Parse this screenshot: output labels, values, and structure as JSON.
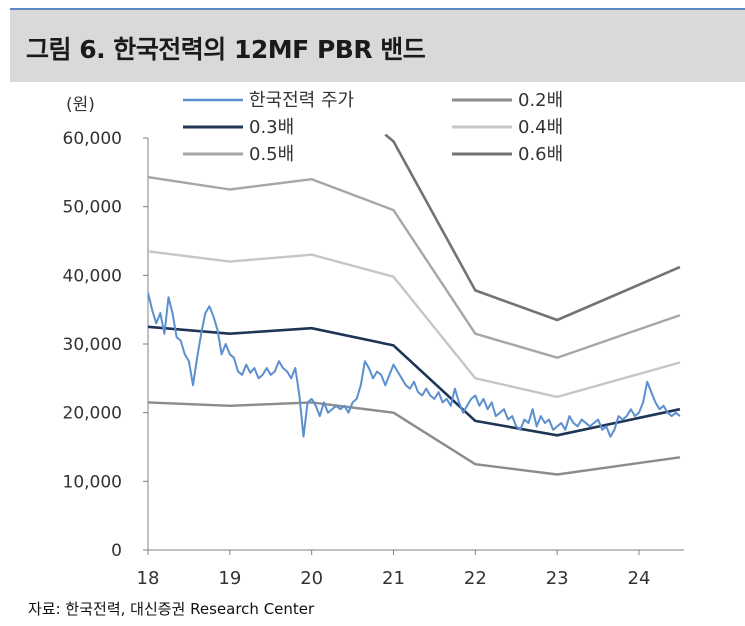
{
  "header": {
    "title": "그림 6.  한국전력의 12MF PBR 밴드"
  },
  "source": "자료: 한국전력, 대신증권 Research Center",
  "colors": {
    "header_bg": "#d9d9d9",
    "header_accent": "#5b89c3",
    "price": "#5b8fd0",
    "pbr_0_2": "#8c8c8c",
    "pbr_0_3": "#1f3556",
    "pbr_0_4": "#c6c6c6",
    "pbr_0_5": "#a6a6a6",
    "pbr_0_6": "#737373"
  },
  "chart_data": {
    "type": "line",
    "unit_label": "(원)",
    "xlabel": "",
    "ylabel": "",
    "xlim": [
      18,
      24.55
    ],
    "ylim": [
      0,
      60000
    ],
    "x_ticks": [
      18,
      19,
      20,
      21,
      22,
      23,
      24
    ],
    "x_tick_labels": [
      "18",
      "19",
      "20",
      "21",
      "22",
      "23",
      "24"
    ],
    "y_ticks": [
      0,
      10000,
      20000,
      30000,
      40000,
      50000,
      60000
    ],
    "y_tick_labels": [
      "0",
      "10,000",
      "20,000",
      "30,000",
      "40,000",
      "50,000",
      "60,000"
    ],
    "grid": false,
    "legend_position": "top",
    "series": [
      {
        "name": "한국전력 주가",
        "color_key": "price",
        "x": [
          18.0,
          18.05,
          18.1,
          18.15,
          18.2,
          18.25,
          18.3,
          18.35,
          18.4,
          18.45,
          18.5,
          18.55,
          18.6,
          18.65,
          18.7,
          18.75,
          18.8,
          18.85,
          18.9,
          18.95,
          19.0,
          19.05,
          19.1,
          19.15,
          19.2,
          19.25,
          19.3,
          19.35,
          19.4,
          19.45,
          19.5,
          19.55,
          19.6,
          19.65,
          19.7,
          19.75,
          19.8,
          19.85,
          19.9,
          19.95,
          20.0,
          20.05,
          20.1,
          20.15,
          20.2,
          20.25,
          20.3,
          20.35,
          20.4,
          20.45,
          20.5,
          20.55,
          20.6,
          20.65,
          20.7,
          20.75,
          20.8,
          20.85,
          20.9,
          20.95,
          21.0,
          21.05,
          21.1,
          21.15,
          21.2,
          21.25,
          21.3,
          21.35,
          21.4,
          21.45,
          21.5,
          21.55,
          21.6,
          21.65,
          21.7,
          21.75,
          21.8,
          21.85,
          21.9,
          21.95,
          22.0,
          22.05,
          22.1,
          22.15,
          22.2,
          22.25,
          22.3,
          22.35,
          22.4,
          22.45,
          22.5,
          22.55,
          22.6,
          22.65,
          22.7,
          22.75,
          22.8,
          22.85,
          22.9,
          22.95,
          23.0,
          23.05,
          23.1,
          23.15,
          23.2,
          23.25,
          23.3,
          23.35,
          23.4,
          23.45,
          23.5,
          23.55,
          23.6,
          23.65,
          23.7,
          23.75,
          23.8,
          23.85,
          23.9,
          23.95,
          24.0,
          24.05,
          24.1,
          24.15,
          24.2,
          24.25,
          24.3,
          24.35,
          24.4,
          24.45,
          24.5
        ],
        "values": [
          37500,
          35000,
          33000,
          34500,
          31500,
          36800,
          34500,
          31000,
          30500,
          28500,
          27500,
          24000,
          28000,
          31500,
          34500,
          35500,
          34000,
          32000,
          28500,
          30000,
          28500,
          28000,
          26000,
          25500,
          27000,
          25800,
          26500,
          25000,
          25500,
          26500,
          25500,
          26000,
          27500,
          26500,
          26000,
          25000,
          26500,
          22500,
          16500,
          21500,
          22000,
          21000,
          19500,
          21500,
          20000,
          20500,
          21000,
          20500,
          21000,
          20000,
          21500,
          22000,
          24000,
          27500,
          26500,
          25000,
          26000,
          25500,
          24000,
          25500,
          27000,
          26000,
          25000,
          24000,
          23500,
          24500,
          23000,
          22500,
          23500,
          22500,
          22000,
          23000,
          21500,
          22000,
          21000,
          23500,
          21500,
          20000,
          21000,
          22000,
          22500,
          21000,
          22000,
          20500,
          21500,
          19500,
          20000,
          20500,
          19000,
          19500,
          18000,
          17500,
          19000,
          18500,
          20500,
          18000,
          19500,
          18500,
          19000,
          17500,
          18000,
          18500,
          17500,
          19500,
          18500,
          18000,
          19000,
          18500,
          18000,
          18500,
          19000,
          17500,
          18000,
          16500,
          17500,
          19500,
          19000,
          19500,
          20500,
          19500,
          20000,
          21500,
          24500,
          23000,
          21500,
          20500,
          21000,
          20000,
          19500,
          20000,
          19500
        ]
      },
      {
        "name": "0.2배",
        "color_key": "pbr_0_2",
        "x": [
          18.0,
          19.0,
          20.0,
          21.0,
          22.0,
          23.0,
          24.5
        ],
        "values": [
          21500,
          21000,
          21500,
          20000,
          12500,
          11000,
          13500
        ]
      },
      {
        "name": "0.3배",
        "color_key": "pbr_0_3",
        "x": [
          18.0,
          19.0,
          20.0,
          21.0,
          22.0,
          23.0,
          24.5
        ],
        "values": [
          32500,
          31500,
          32300,
          29800,
          18800,
          16700,
          20500
        ]
      },
      {
        "name": "0.4배",
        "color_key": "pbr_0_4",
        "x": [
          18.0,
          19.0,
          20.0,
          21.0,
          22.0,
          23.0,
          24.5
        ],
        "values": [
          43500,
          42000,
          43000,
          39800,
          25000,
          22300,
          27300
        ]
      },
      {
        "name": "0.5배",
        "color_key": "pbr_0_5",
        "x": [
          18.0,
          19.0,
          20.0,
          21.0,
          22.0,
          23.0,
          24.5
        ],
        "values": [
          54300,
          52500,
          54000,
          49500,
          31500,
          28000,
          34200
        ]
      },
      {
        "name": "0.6배",
        "color_key": "pbr_0_6",
        "x": [
          20.9,
          21.0,
          22.0,
          23.0,
          24.5
        ],
        "values": [
          60500,
          59500,
          37800,
          33500,
          41200
        ]
      }
    ],
    "legend": [
      {
        "label": "한국전력 주가",
        "color_key": "price",
        "col": 0,
        "row": 0
      },
      {
        "label": "0.2배",
        "color_key": "pbr_0_2",
        "col": 1,
        "row": 0
      },
      {
        "label": "0.3배",
        "color_key": "pbr_0_3",
        "col": 0,
        "row": 1
      },
      {
        "label": "0.4배",
        "color_key": "pbr_0_4",
        "col": 1,
        "row": 1
      },
      {
        "label": "0.5배",
        "color_key": "pbr_0_5",
        "col": 0,
        "row": 2
      },
      {
        "label": "0.6배",
        "color_key": "pbr_0_6",
        "col": 1,
        "row": 2
      }
    ]
  }
}
